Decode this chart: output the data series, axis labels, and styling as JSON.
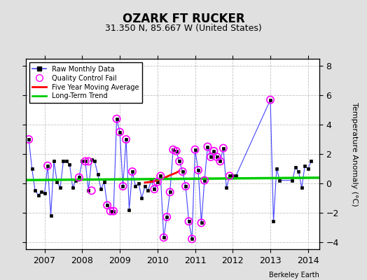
{
  "title": "OZARK FT RUCKER",
  "subtitle": "31.350 N, 85.667 W (United States)",
  "ylabel": "Temperature Anomaly (°C)",
  "credit": "Berkeley Earth",
  "ylim": [
    -4.5,
    8.5
  ],
  "xlim": [
    2006.5,
    2014.3
  ],
  "yticks": [
    -4,
    -2,
    0,
    2,
    4,
    6,
    8
  ],
  "xticks": [
    2007,
    2008,
    2009,
    2010,
    2011,
    2012,
    2013,
    2014
  ],
  "bg_color": "#e0e0e0",
  "plot_bg": "#ffffff",
  "raw_x": [
    2006.583,
    2006.667,
    2006.75,
    2006.833,
    2006.917,
    2007.0,
    2007.083,
    2007.167,
    2007.25,
    2007.333,
    2007.417,
    2007.5,
    2007.583,
    2007.667,
    2007.75,
    2007.833,
    2007.917,
    2008.0,
    2008.083,
    2008.167,
    2008.25,
    2008.333,
    2008.417,
    2008.5,
    2008.583,
    2008.667,
    2008.75,
    2008.833,
    2008.917,
    2009.0,
    2009.083,
    2009.167,
    2009.25,
    2009.333,
    2009.417,
    2009.5,
    2009.583,
    2009.667,
    2009.75,
    2009.833,
    2009.917,
    2010.0,
    2010.083,
    2010.167,
    2010.25,
    2010.333,
    2010.417,
    2010.5,
    2010.583,
    2010.667,
    2010.75,
    2010.833,
    2010.917,
    2011.0,
    2011.083,
    2011.167,
    2011.25,
    2011.333,
    2011.417,
    2011.5,
    2011.583,
    2011.667,
    2011.75,
    2011.833,
    2011.917,
    2012.0,
    2012.083,
    2013.0,
    2013.083,
    2013.167,
    2013.25,
    2013.583,
    2013.667,
    2013.75,
    2013.833,
    2013.917,
    2014.0,
    2014.083
  ],
  "raw_y": [
    3.0,
    1.0,
    -0.5,
    -0.8,
    -0.6,
    -0.7,
    1.2,
    -2.2,
    1.5,
    0.1,
    -0.3,
    1.5,
    1.5,
    1.3,
    -0.3,
    0.2,
    0.4,
    1.5,
    1.5,
    -0.5,
    1.6,
    1.5,
    0.6,
    -0.4,
    0.1,
    -1.5,
    -1.9,
    -1.9,
    4.4,
    3.5,
    -0.2,
    3.0,
    -1.8,
    0.8,
    -0.2,
    0.0,
    -1.0,
    -0.2,
    -0.5,
    0.2,
    -0.4,
    0.1,
    0.5,
    -3.7,
    -2.3,
    -0.6,
    2.3,
    2.2,
    1.5,
    0.8,
    -0.2,
    -2.6,
    -3.8,
    2.3,
    0.9,
    -2.7,
    0.2,
    2.5,
    1.8,
    2.2,
    1.8,
    1.5,
    2.4,
    -0.3,
    0.5,
    0.5,
    0.5,
    5.7,
    -2.6,
    1.0,
    0.2,
    0.2,
    1.1,
    0.8,
    -0.3,
    1.2,
    1.0,
    1.5
  ],
  "qc_fail_x": [
    2006.583,
    2007.083,
    2007.917,
    2008.083,
    2008.167,
    2008.25,
    2008.667,
    2008.75,
    2008.833,
    2008.917,
    2009.0,
    2009.083,
    2009.167,
    2009.333,
    2009.917,
    2010.0,
    2010.083,
    2010.167,
    2010.25,
    2010.333,
    2010.417,
    2010.5,
    2010.583,
    2010.667,
    2010.75,
    2010.833,
    2010.917,
    2011.0,
    2011.083,
    2011.167,
    2011.25,
    2011.333,
    2011.417,
    2011.5,
    2011.583,
    2011.667,
    2011.75,
    2011.917,
    2013.0
  ],
  "qc_fail_y": [
    3.0,
    1.2,
    0.4,
    1.5,
    1.5,
    -0.5,
    -1.5,
    -1.9,
    -1.9,
    4.4,
    3.5,
    -0.2,
    3.0,
    0.8,
    -0.4,
    0.1,
    0.5,
    -3.7,
    -2.3,
    -0.6,
    2.3,
    2.2,
    1.5,
    0.8,
    -0.2,
    -2.6,
    -3.8,
    2.3,
    0.9,
    -2.7,
    0.2,
    2.5,
    1.8,
    2.2,
    1.8,
    1.5,
    2.4,
    0.5,
    5.7
  ],
  "moving_avg_x": [
    2009.667,
    2009.833,
    2010.0,
    2010.167,
    2010.333,
    2010.5,
    2010.583
  ],
  "moving_avg_y": [
    0.05,
    0.1,
    0.2,
    0.35,
    0.55,
    0.72,
    0.85
  ],
  "trend_x": [
    2006.5,
    2014.3
  ],
  "trend_y": [
    0.22,
    0.38
  ]
}
